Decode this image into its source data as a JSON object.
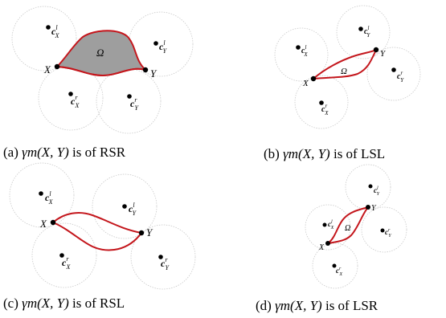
{
  "figure": {
    "subfigures": [
      {
        "id": "a",
        "caption_prefix": "(a)",
        "caption_math": "γm(X, Y)",
        "caption_suffix": "is of RSR",
        "labels": {
          "x": "X",
          "y": "Y",
          "omega": "Ω",
          "cxl": "c",
          "cxl_sub": "X",
          "cxl_sup": "l",
          "cyl": "c",
          "cyl_sub": "Y",
          "cyl_sup": "l",
          "cxr": "c",
          "cxr_sub": "X",
          "cxr_sup": "r",
          "cyr": "c",
          "cyr_sub": "Y",
          "cyr_sup": "r"
        }
      },
      {
        "id": "b",
        "caption_prefix": "(b)",
        "caption_math": "γm(X, Y)",
        "caption_suffix": "is of LSL",
        "labels": {
          "x": "X",
          "y": "Y",
          "omega": "Ω",
          "cxl": "c",
          "cxl_sub": "X",
          "cxl_sup": "l",
          "cyl": "c",
          "cyl_sub": "Y",
          "cyl_sup": "l",
          "cxr": "c",
          "cxr_sub": "X",
          "cxr_sup": "r",
          "cyr": "c",
          "cyr_sub": "Y",
          "cyr_sup": "r"
        }
      },
      {
        "id": "c",
        "caption_prefix": "(c)",
        "caption_math": "γm(X, Y)",
        "caption_suffix": "is of RSL",
        "labels": {
          "x": "X",
          "y": "Y",
          "cxl": "c",
          "cxl_sub": "X",
          "cxl_sup": "l",
          "cyl": "c",
          "cyl_sub": "Y",
          "cyl_sup": "l",
          "cxr": "c",
          "cxr_sub": "X",
          "cxr_sup": "r",
          "cyr": "c",
          "cyr_sub": "Y",
          "cyr_sup": "r"
        }
      },
      {
        "id": "d",
        "caption_prefix": "(d)",
        "caption_math": "γm(X, Y)",
        "caption_suffix": "is of LSR",
        "labels": {
          "x": "X",
          "y": "Y",
          "omega": "Ω",
          "cxl": "c",
          "cxl_sub": "X",
          "cxl_sup": "l",
          "cyl": "c",
          "cyl_sub": "Y",
          "cyl_sup": "l",
          "cxr": "c",
          "cxr_sub": "X",
          "cxr_sup": "r",
          "cyr": "c",
          "cyr_sub": "Y",
          "cyr_sup": "r"
        }
      }
    ],
    "colors": {
      "arc": "#c4161c",
      "region_fill": "#9e9e9e",
      "circle": "#c9c9c9"
    }
  }
}
